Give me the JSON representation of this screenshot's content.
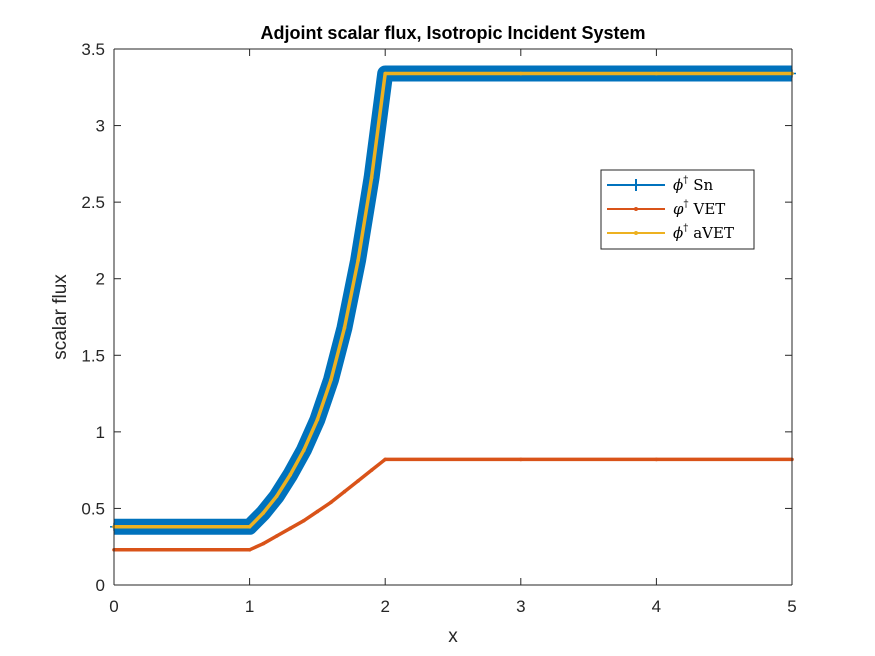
{
  "chart_data": {
    "type": "line",
    "title": "Adjoint scalar flux, Isotropic Incident System",
    "xlabel": "x",
    "ylabel": "scalar flux",
    "xlim": [
      0,
      5
    ],
    "ylim": [
      0,
      3.5
    ],
    "x_ticks": [
      {
        "value": 0,
        "label": "0"
      },
      {
        "value": 1,
        "label": "1"
      },
      {
        "value": 2,
        "label": "2"
      },
      {
        "value": 3,
        "label": "3"
      },
      {
        "value": 4,
        "label": "4"
      },
      {
        "value": 5,
        "label": "5"
      }
    ],
    "y_ticks": [
      {
        "value": 0,
        "label": "0"
      },
      {
        "value": 0.5,
        "label": "0.5"
      },
      {
        "value": 1,
        "label": "1"
      },
      {
        "value": 1.5,
        "label": "1.5"
      },
      {
        "value": 2,
        "label": "2"
      },
      {
        "value": 2.5,
        "label": "2.5"
      },
      {
        "value": 3,
        "label": "3"
      },
      {
        "value": 3.5,
        "label": "3.5"
      }
    ],
    "grid": false,
    "legend_position": "upper-right",
    "series": [
      {
        "name": "Sn",
        "legend_symbol": "ϕ",
        "legend_superscript": "†",
        "color": "#0072BD",
        "marker": "+",
        "error_band": 0.02,
        "x": [
          0,
          1,
          1.1,
          1.2,
          1.3,
          1.4,
          1.5,
          1.6,
          1.7,
          1.8,
          1.9,
          2,
          3,
          4,
          5
        ],
        "y": [
          0.38,
          0.38,
          0.47,
          0.58,
          0.72,
          0.88,
          1.08,
          1.34,
          1.68,
          2.12,
          2.66,
          3.34,
          3.34,
          3.34,
          3.34
        ]
      },
      {
        "name": "VET",
        "legend_symbol": "φ",
        "legend_superscript": "†",
        "color": "#D95319",
        "marker": ".",
        "x": [
          0,
          1,
          1.1,
          1.2,
          1.3,
          1.4,
          1.5,
          1.6,
          1.7,
          1.8,
          1.9,
          2,
          3,
          4,
          5
        ],
        "y": [
          0.23,
          0.23,
          0.27,
          0.32,
          0.37,
          0.42,
          0.48,
          0.54,
          0.61,
          0.68,
          0.75,
          0.82,
          0.82,
          0.82,
          0.82
        ]
      },
      {
        "name": "aVET",
        "legend_symbol": "ϕ",
        "legend_superscript": "†",
        "color": "#EDB120",
        "marker": ".",
        "x": [
          0,
          1,
          1.1,
          1.2,
          1.3,
          1.4,
          1.5,
          1.6,
          1.7,
          1.8,
          1.9,
          2,
          3,
          4,
          5
        ],
        "y": [
          0.38,
          0.38,
          0.47,
          0.58,
          0.72,
          0.88,
          1.08,
          1.34,
          1.68,
          2.12,
          2.66,
          3.34,
          3.34,
          3.34,
          3.34
        ]
      }
    ]
  }
}
